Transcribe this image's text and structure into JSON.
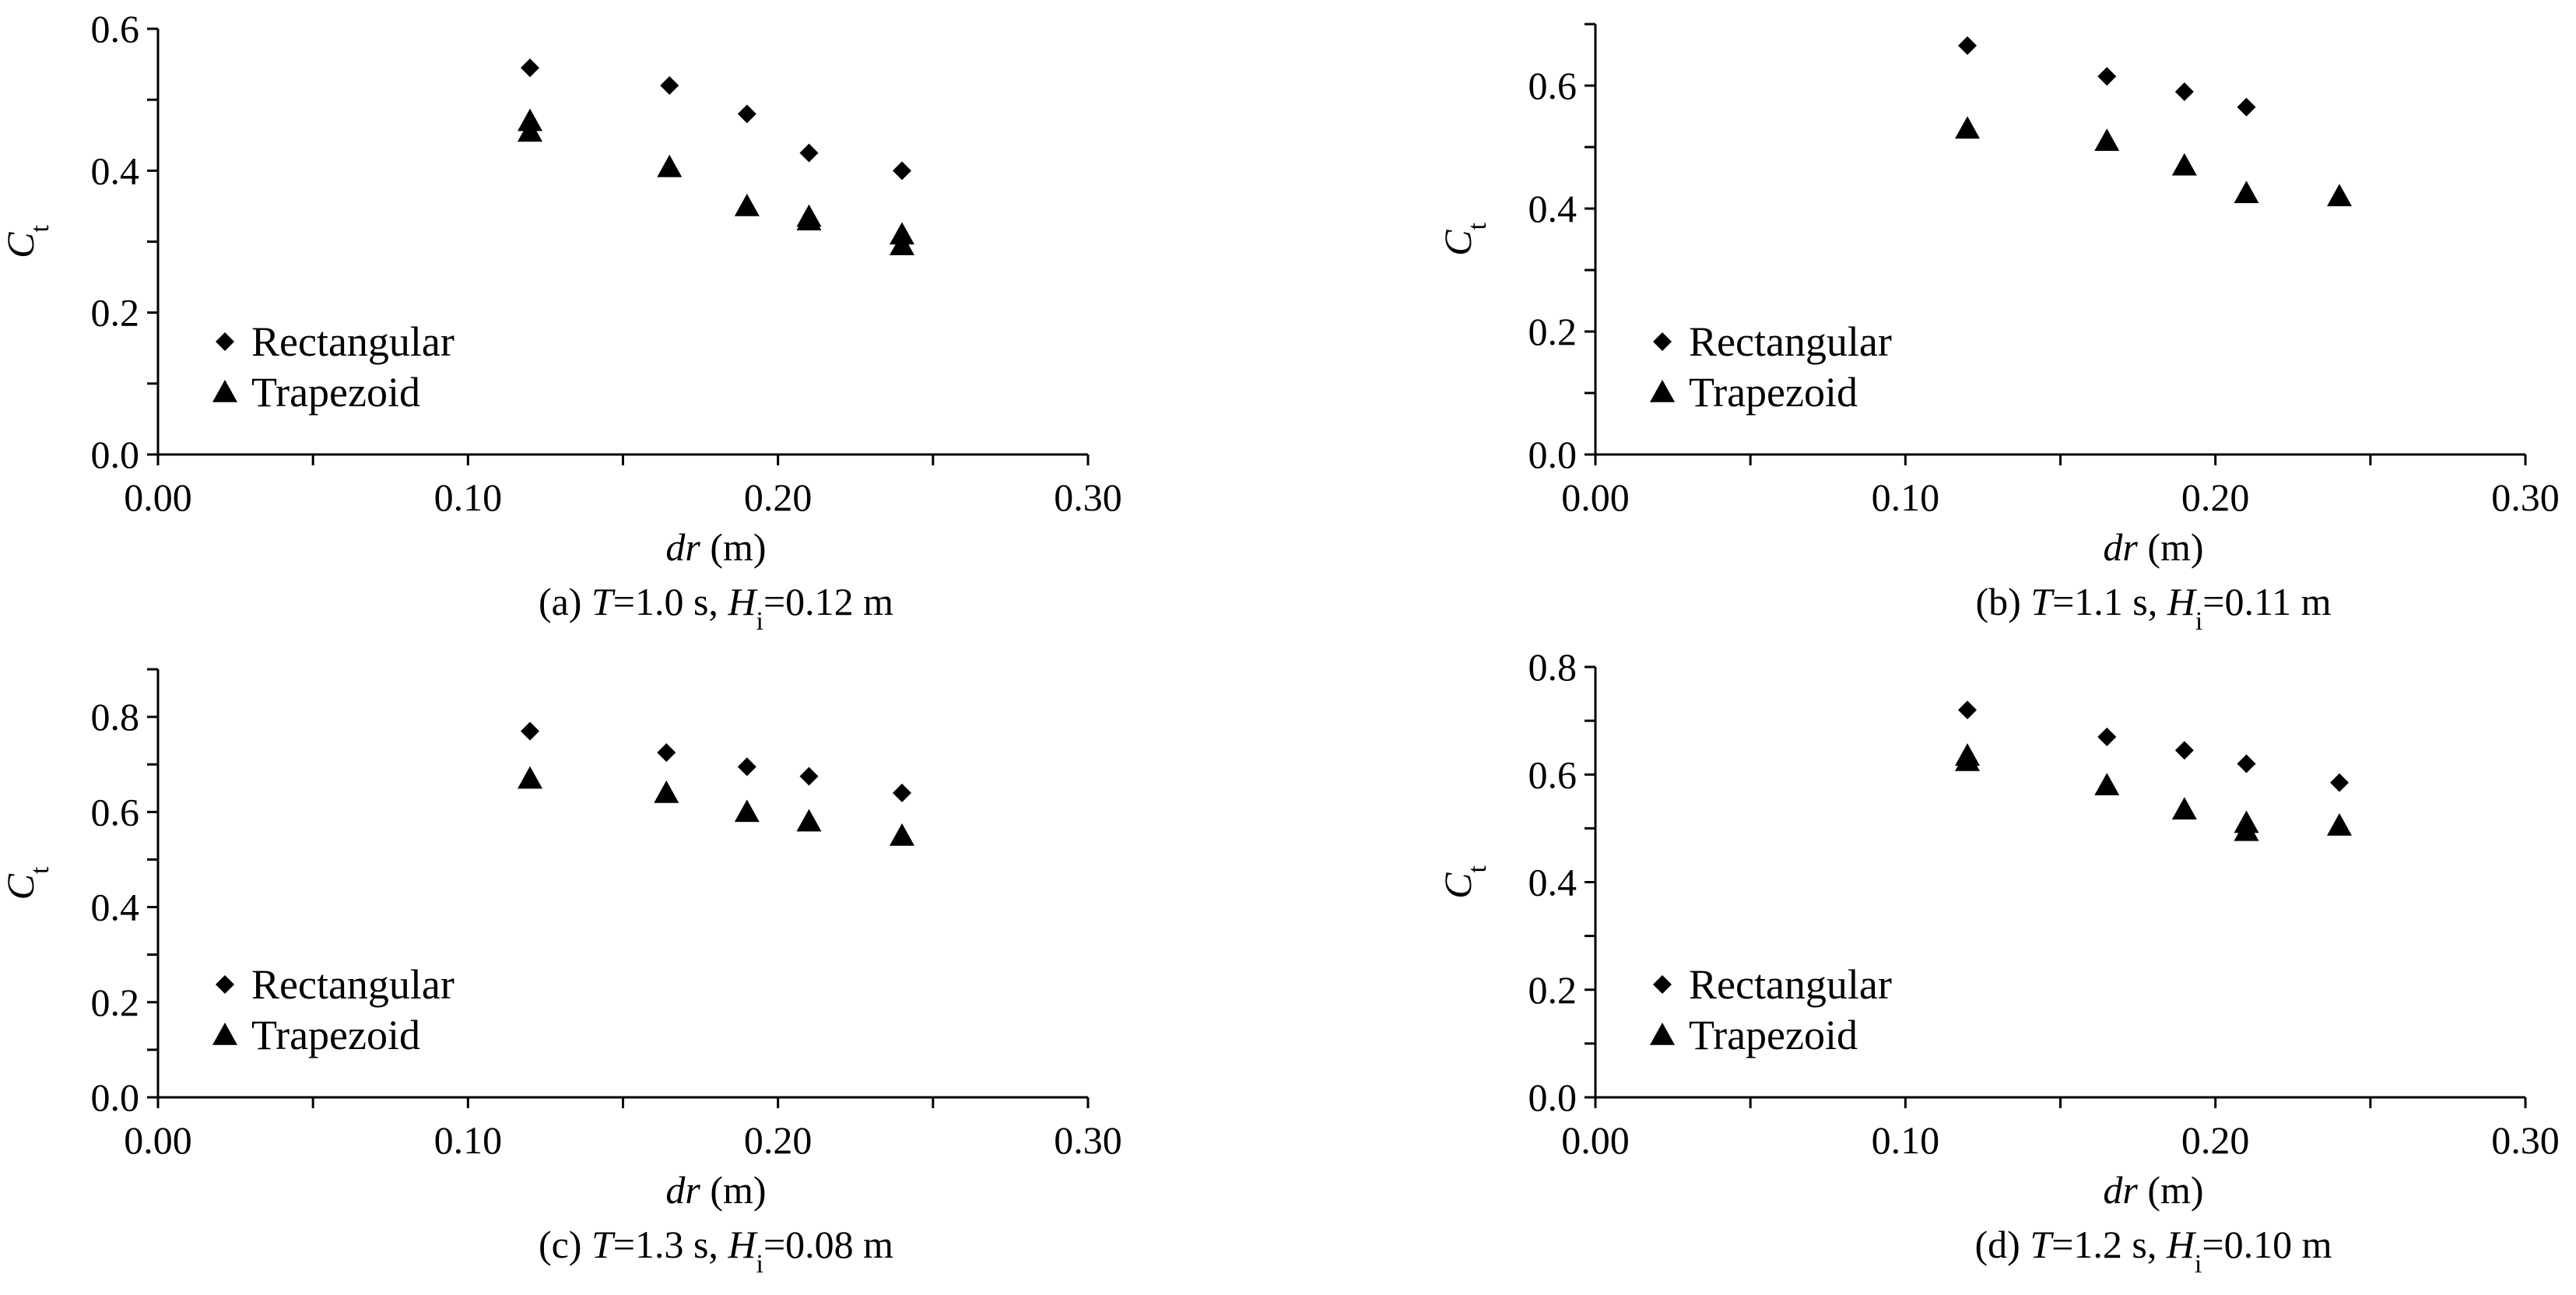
{
  "chart_data": [
    {
      "type": "scatter",
      "caption": {
        "prefix": "(a) ",
        "t_var": "T",
        "t_val": "=1.0 s, ",
        "h_var": "H",
        "h_sub": "i",
        "h_val": "=0.12 m"
      },
      "xlabel": {
        "var": "dr",
        "unit": " (m)"
      },
      "ylabel": {
        "var": "C",
        "sub": "t"
      },
      "xlim": [
        0,
        0.3
      ],
      "ylim": [
        0,
        0.6
      ],
      "xticks": [
        "0.00",
        "0.10",
        "0.20",
        "0.30"
      ],
      "yticks": [
        "0.0",
        "0.2",
        "0.4",
        "0.6"
      ],
      "series": [
        {
          "name": "Rectangular",
          "marker": "diamond",
          "x": [
            0.12,
            0.165,
            0.19,
            0.21,
            0.24
          ],
          "y": [
            0.545,
            0.52,
            0.48,
            0.425,
            0.4
          ]
        },
        {
          "name": "Trapezoid",
          "marker": "triangle",
          "x": [
            0.12,
            0.12,
            0.165,
            0.19,
            0.21,
            0.21,
            0.24,
            0.24
          ],
          "y": [
            0.47,
            0.455,
            0.405,
            0.35,
            0.335,
            0.33,
            0.31,
            0.295
          ]
        }
      ]
    },
    {
      "type": "scatter",
      "caption": {
        "prefix": "(b) ",
        "t_var": "T",
        "t_val": "=1.1 s, ",
        "h_var": "H",
        "h_sub": "i",
        "h_val": "=0.11 m"
      },
      "xlabel": {
        "var": "dr",
        "unit": " (m)"
      },
      "ylabel": {
        "var": "C",
        "sub": "t"
      },
      "xlim": [
        0,
        0.3
      ],
      "ylim": [
        0,
        0.7
      ],
      "xticks": [
        "0.00",
        "0.10",
        "0.20",
        "0.30"
      ],
      "yticks": [
        "0.0",
        "0.2",
        "0.4",
        "0.6"
      ],
      "series": [
        {
          "name": "Rectangular",
          "marker": "diamond",
          "x": [
            0.12,
            0.165,
            0.19,
            0.21
          ],
          "y": [
            0.665,
            0.615,
            0.59,
            0.565
          ]
        },
        {
          "name": "Trapezoid",
          "marker": "triangle",
          "x": [
            0.12,
            0.165,
            0.19,
            0.21,
            0.24
          ],
          "y": [
            0.53,
            0.51,
            0.47,
            0.425,
            0.42
          ]
        }
      ]
    },
    {
      "type": "scatter",
      "caption": {
        "prefix": "(c) ",
        "t_var": "T",
        "t_val": "=1.3 s, ",
        "h_var": "H",
        "h_sub": "i",
        "h_val": "=0.08 m"
      },
      "xlabel": {
        "var": "dr",
        "unit": " (m)"
      },
      "ylabel": {
        "var": "C",
        "sub": "t"
      },
      "xlim": [
        0,
        0.3
      ],
      "ylim": [
        0,
        0.9
      ],
      "xticks": [
        "0.00",
        "0.10",
        "0.20",
        "0.30"
      ],
      "yticks": [
        "0.0",
        "0.2",
        "0.4",
        "0.6",
        "0.8"
      ],
      "series": [
        {
          "name": "Rectangular",
          "marker": "diamond",
          "x": [
            0.12,
            0.164,
            0.19,
            0.21,
            0.24
          ],
          "y": [
            0.77,
            0.725,
            0.695,
            0.675,
            0.64
          ]
        },
        {
          "name": "Trapezoid",
          "marker": "triangle",
          "x": [
            0.12,
            0.164,
            0.19,
            0.21,
            0.24
          ],
          "y": [
            0.67,
            0.64,
            0.6,
            0.58,
            0.55
          ]
        }
      ]
    },
    {
      "type": "scatter",
      "caption": {
        "prefix": "(d) ",
        "t_var": "T",
        "t_val": "=1.2 s, ",
        "h_var": "H",
        "h_sub": "i",
        "h_val": "=0.10 m"
      },
      "xlabel": {
        "var": "dr",
        "unit": " (m)"
      },
      "ylabel": {
        "var": "C",
        "sub": "t"
      },
      "xlim": [
        0,
        0.3
      ],
      "ylim": [
        0,
        0.8
      ],
      "xticks": [
        "0.00",
        "0.10",
        "0.20",
        "0.30"
      ],
      "yticks": [
        "0.0",
        "0.2",
        "0.4",
        "0.6",
        "0.8"
      ],
      "series": [
        {
          "name": "Rectangular",
          "marker": "diamond",
          "x": [
            0.12,
            0.165,
            0.19,
            0.21,
            0.24
          ],
          "y": [
            0.72,
            0.67,
            0.645,
            0.62,
            0.585
          ]
        },
        {
          "name": "Trapezoid",
          "marker": "triangle",
          "x": [
            0.12,
            0.12,
            0.165,
            0.19,
            0.21,
            0.21,
            0.24
          ],
          "y": [
            0.635,
            0.625,
            0.58,
            0.535,
            0.51,
            0.495,
            0.505
          ]
        }
      ]
    }
  ]
}
